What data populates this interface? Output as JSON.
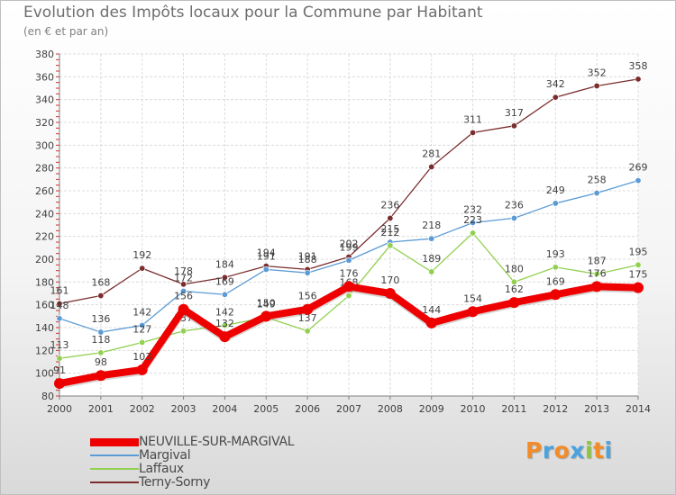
{
  "chart_data": {
    "type": "line",
    "title": "Evolution des Impôts locaux pour la Commune par Habitant",
    "subtitle": "(en € et par an)",
    "xlabel": "",
    "ylabel": "",
    "ylim": [
      80,
      380
    ],
    "yticks": [
      80,
      100,
      120,
      140,
      160,
      180,
      200,
      220,
      240,
      260,
      280,
      300,
      320,
      340,
      360,
      380
    ],
    "x": [
      "2000",
      "2001",
      "2002",
      "2003",
      "2004",
      "2005",
      "2006",
      "2007",
      "2008",
      "2009",
      "2010",
      "2011",
      "2012",
      "2013",
      "2014"
    ],
    "grid": true,
    "legend_position": "bottom-left",
    "series": [
      {
        "name": "NEUVILLE-SUR-MARGIVAL",
        "color": "#ee0000",
        "values": [
          91,
          98,
          103,
          156,
          132,
          150,
          156,
          176,
          170,
          144,
          154,
          162,
          169,
          176,
          175
        ]
      },
      {
        "name": "Margival",
        "color": "#5b9bd5",
        "values": [
          148,
          136,
          142,
          172,
          169,
          191,
          188,
          199,
          215,
          218,
          232,
          236,
          249,
          258,
          269
        ]
      },
      {
        "name": "Laffaux",
        "color": "#92d050",
        "values": [
          113,
          118,
          127,
          137,
          142,
          149,
          137,
          168,
          212,
          189,
          223,
          180,
          193,
          187,
          195
        ]
      },
      {
        "name": "Terny-Sorny",
        "color": "#7b2d2d",
        "values": [
          161,
          168,
          192,
          178,
          184,
          194,
          191,
          202,
          236,
          281,
          311,
          317,
          342,
          352,
          358
        ]
      }
    ]
  },
  "logo": {
    "text": "Proxiti",
    "letters": [
      "P",
      "r",
      "o",
      "x",
      "i",
      "t",
      "i"
    ],
    "colors": [
      "#f28c28",
      "#4aa3df",
      "#f28c28",
      "#4aa3df",
      "#8cc63f",
      "#f28c28",
      "#4aa3df"
    ]
  }
}
